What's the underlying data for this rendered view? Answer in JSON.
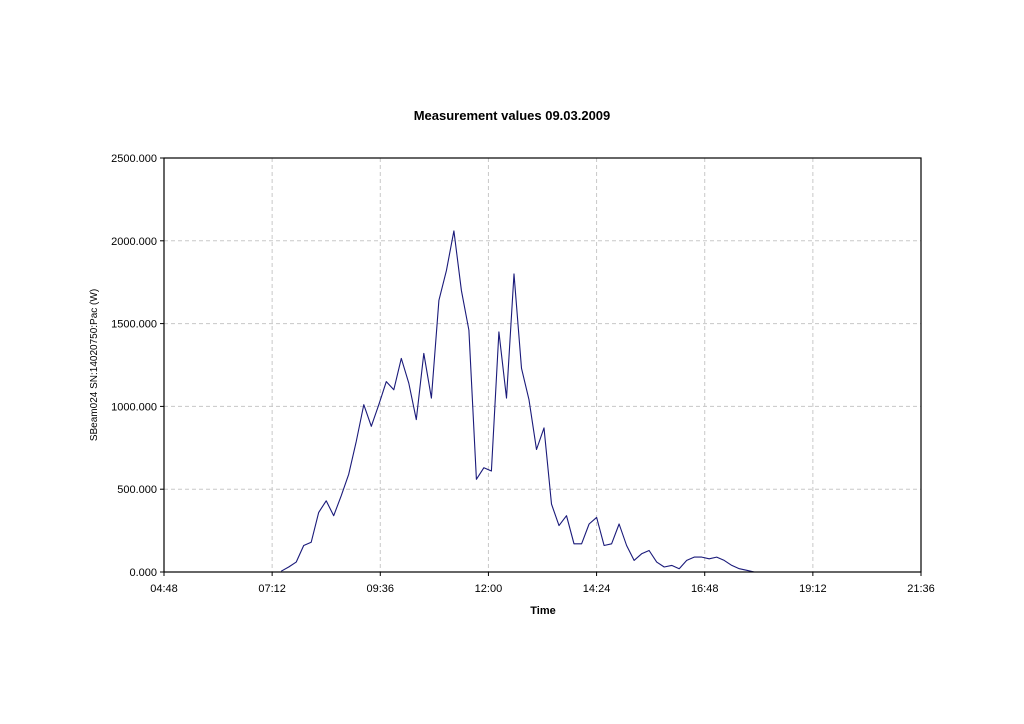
{
  "chart_data": {
    "type": "line",
    "title": "Measurement values 09.03.2009",
    "xlabel": "Time",
    "ylabel": "SBeam024 SN:14020750:Pac (W)",
    "xlim": [
      "04:48",
      "21:36"
    ],
    "ylim": [
      0,
      2500
    ],
    "x_ticks": [
      "04:48",
      "07:12",
      "09:36",
      "12:00",
      "14:24",
      "16:48",
      "19:12",
      "21:36"
    ],
    "y_ticks": [
      "0.000",
      "500.000",
      "1000.000",
      "1500.000",
      "2000.000",
      "2500.000"
    ],
    "grid": true,
    "line_color": "#1a1a7a",
    "series": [
      {
        "x": [
          "07:24",
          "07:34",
          "07:44",
          "07:54",
          "08:04",
          "08:14",
          "08:24",
          "08:34",
          "08:44",
          "08:54",
          "09:04",
          "09:14",
          "09:24",
          "09:34",
          "09:44",
          "09:54",
          "10:04",
          "10:14",
          "10:24",
          "10:34",
          "10:44",
          "10:54",
          "11:04",
          "11:14",
          "11:24",
          "11:34",
          "11:44",
          "11:54",
          "12:04",
          "12:14",
          "12:24",
          "12:34",
          "12:44",
          "12:54",
          "13:04",
          "13:14",
          "13:24",
          "13:34",
          "13:44",
          "13:54",
          "14:04",
          "14:14",
          "14:24",
          "14:34",
          "14:44",
          "14:54",
          "15:04",
          "15:14",
          "15:24",
          "15:34",
          "15:44",
          "15:54",
          "16:04",
          "16:14",
          "16:24",
          "16:34",
          "16:44",
          "16:54",
          "17:04",
          "17:14",
          "17:24",
          "17:34",
          "17:44",
          "17:54"
        ],
        "values": [
          5,
          30,
          60,
          160,
          180,
          360,
          430,
          340,
          460,
          590,
          790,
          1010,
          880,
          1010,
          1150,
          1100,
          1290,
          1140,
          920,
          1320,
          1050,
          1640,
          1820,
          2060,
          1700,
          1460,
          560,
          630,
          610,
          1450,
          1050,
          1800,
          1230,
          1040,
          740,
          870,
          410,
          280,
          340,
          170,
          170,
          290,
          330,
          160,
          170,
          290,
          160,
          70,
          110,
          130,
          60,
          30,
          40,
          20,
          70,
          90,
          90,
          80,
          90,
          70,
          40,
          20,
          10,
          0
        ]
      }
    ]
  }
}
